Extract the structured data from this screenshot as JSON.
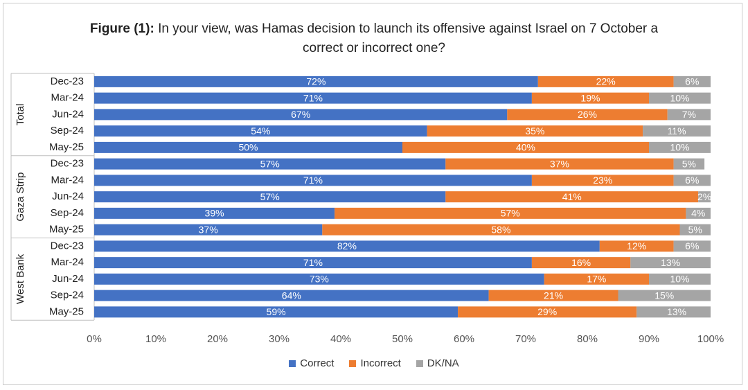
{
  "chart_data": {
    "type": "bar",
    "orientation": "horizontal",
    "stacked": true,
    "title_prefix": "Figure (1):",
    "title_text": "In your view, was Hamas decision to launch its offensive against Israel on 7 October a correct or incorrect one?",
    "xlim": [
      0,
      100
    ],
    "x_ticks": [
      "0%",
      "10%",
      "20%",
      "30%",
      "40%",
      "50%",
      "60%",
      "70%",
      "80%",
      "90%",
      "100%"
    ],
    "groups": [
      {
        "name": "Total",
        "rows": [
          {
            "period": "Dec-23",
            "values": [
              72,
              22,
              6
            ],
            "labels": [
              "72%",
              "22%",
              "6%"
            ]
          },
          {
            "period": "Mar-24",
            "values": [
              71,
              19,
              10
            ],
            "labels": [
              "71%",
              "19%",
              "10%"
            ]
          },
          {
            "period": "Jun-24",
            "values": [
              67,
              26,
              7
            ],
            "labels": [
              "67%",
              "26%",
              "7%"
            ]
          },
          {
            "period": "Sep-24",
            "values": [
              54,
              35,
              11
            ],
            "labels": [
              "54%",
              "35%",
              "11%"
            ]
          },
          {
            "period": "May-25",
            "values": [
              50,
              40,
              10
            ],
            "labels": [
              "50%",
              "40%",
              "10%"
            ]
          }
        ]
      },
      {
        "name": "Gaza Strip",
        "rows": [
          {
            "period": "Dec-23",
            "values": [
              57,
              37,
              5
            ],
            "labels": [
              "57%",
              "37%",
              "5%"
            ]
          },
          {
            "period": "Mar-24",
            "values": [
              71,
              23,
              6
            ],
            "labels": [
              "71%",
              "23%",
              "6%"
            ]
          },
          {
            "period": "Jun-24",
            "values": [
              57,
              41,
              2
            ],
            "labels": [
              "57%",
              "41%",
              "2%"
            ]
          },
          {
            "period": "Sep-24",
            "values": [
              39,
              57,
              4
            ],
            "labels": [
              "39%",
              "57%",
              "4%"
            ]
          },
          {
            "period": "May-25",
            "values": [
              37,
              58,
              5
            ],
            "labels": [
              "37%",
              "58%",
              "5%"
            ]
          }
        ]
      },
      {
        "name": "West Bank",
        "rows": [
          {
            "period": "Dec-23",
            "values": [
              82,
              12,
              6
            ],
            "labels": [
              "82%",
              "12%",
              "6%"
            ]
          },
          {
            "period": "Mar-24",
            "values": [
              71,
              16,
              13
            ],
            "labels": [
              "71%",
              "16%",
              "13%"
            ]
          },
          {
            "period": "Jun-24",
            "values": [
              73,
              17,
              10
            ],
            "labels": [
              "73%",
              "17%",
              "10%"
            ]
          },
          {
            "period": "Sep-24",
            "values": [
              64,
              21,
              15
            ],
            "labels": [
              "64%",
              "21%",
              "15%"
            ]
          },
          {
            "period": "May-25",
            "values": [
              59,
              29,
              13
            ],
            "labels": [
              "59%",
              "29%",
              "13%"
            ]
          }
        ]
      }
    ],
    "series": [
      {
        "name": "Correct",
        "color": "#4472c4"
      },
      {
        "name": "Incorrect",
        "color": "#ed7d31"
      },
      {
        "name": "DK/NA",
        "color": "#a5a5a5"
      }
    ],
    "legend_position": "bottom"
  }
}
